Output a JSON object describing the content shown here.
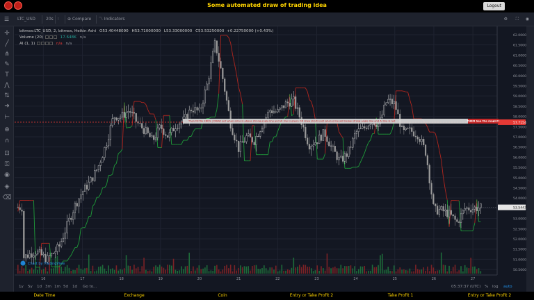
{
  "header": {
    "title": "Some automated draw of trading idea",
    "logout_label": "Logout"
  },
  "toolbar": {
    "symbol": "LTC_USD",
    "interval": "20s",
    "compare_label": "Compare",
    "indicators_label": "Indicators"
  },
  "legend": {
    "title": "bitmex:LTC_USD, 2, bitmex, Heikin Ashi",
    "open": "O53.40448090",
    "high": "H53.71000000",
    "low": "L53.33000000",
    "close": "C53.53250000",
    "change": "+0.22750000 (+0.43%)",
    "volume_label": "Volume (20)",
    "volume_value": "17.648K",
    "volume_na": "n/a",
    "ai_label": "AI (1, 1)",
    "ai_na1": "n/a",
    "ai_na2": "n/a"
  },
  "price_axis": {
    "ticks": [
      "62.00000000",
      "61.50000000",
      "61.00000000",
      "60.50000000",
      "60.00000000",
      "59.50000000",
      "59.00000000",
      "58.50000000",
      "58.00000000",
      "57.50000000",
      "57.00000000",
      "56.50000000",
      "56.00000000",
      "55.50000000",
      "55.00000000",
      "54.50000000",
      "54.00000000",
      "53.50000000",
      "53.00000000",
      "52.50000000",
      "52.00000000",
      "51.50000000",
      "51.00000000",
      "50.50000000"
    ],
    "last_price": "53.54433841",
    "line_price": "57.71541466"
  },
  "time_axis": {
    "ticks": [
      "16",
      "17",
      "18",
      "19",
      "20",
      "21",
      "22",
      "23",
      "24",
      "25",
      "26",
      "27"
    ]
  },
  "annotation": {
    "text": "Then till flip ENDS  |  DRAW just when   price is above strong angle line and AI line is green       OR       draw shorts just when price will below strong angle line and AI line is red",
    "badge": "THEN See the magic!!"
  },
  "watermark": "Chart by TradingView",
  "bottom_toolbar": {
    "ranges": [
      "1y",
      "5y",
      "1d",
      "3m",
      "1m",
      "5d",
      "1d"
    ],
    "goto_label": "Go to...",
    "time": "05:37:37 (UTC)",
    "pct_label": "%",
    "log_label": "log",
    "auto_label": "auto"
  },
  "footer": {
    "columns": [
      "Date Time",
      "Exchange",
      "Coin",
      "Entry or Take Profit 2",
      "Take Profit 1",
      "Entry or Take Profit 2"
    ]
  },
  "colors": {
    "up": "#d9d9d9",
    "down": "#9a9a9a",
    "ai_green": "#1f9d3a",
    "ai_red": "#b3261e",
    "volume_up": "#1e6b3a",
    "volume_down": "#7a2226",
    "accent_yellow": "#ffd400"
  },
  "chart_data": {
    "type": "candlestick",
    "style": "Heikin Ashi",
    "ylim": [
      50.3,
      62.1
    ],
    "x": [
      "16",
      "17",
      "18",
      "19",
      "20",
      "21",
      "22",
      "23",
      "24",
      "25",
      "26",
      "27"
    ],
    "close_path": [
      [
        15.5,
        51.1
      ],
      [
        15.8,
        51.4
      ],
      [
        16.1,
        51.0
      ],
      [
        16.4,
        51.6
      ],
      [
        16.6,
        52.6
      ],
      [
        16.8,
        53.6
      ],
      [
        17.0,
        54.3
      ],
      [
        17.2,
        54.8
      ],
      [
        17.4,
        55.5
      ],
      [
        17.6,
        56.6
      ],
      [
        17.8,
        58.0
      ],
      [
        18.0,
        58.0
      ],
      [
        18.2,
        58.3
      ],
      [
        18.4,
        57.7
      ],
      [
        18.6,
        57.3
      ],
      [
        18.8,
        56.8
      ],
      [
        19.0,
        57.5
      ],
      [
        19.2,
        57.0
      ],
      [
        19.4,
        57.6
      ],
      [
        19.6,
        57.8
      ],
      [
        19.8,
        58.4
      ],
      [
        20.0,
        58.2
      ],
      [
        20.2,
        59.6
      ],
      [
        20.4,
        61.6
      ],
      [
        20.6,
        59.8
      ],
      [
        20.8,
        57.6
      ],
      [
        21.0,
        56.4
      ],
      [
        21.2,
        57.0
      ],
      [
        21.4,
        56.8
      ],
      [
        21.6,
        57.6
      ],
      [
        21.8,
        58.3
      ],
      [
        22.0,
        58.2
      ],
      [
        22.2,
        58.6
      ],
      [
        22.4,
        58.8
      ],
      [
        22.6,
        57.8
      ],
      [
        22.8,
        56.6
      ],
      [
        23.0,
        56.8
      ],
      [
        23.2,
        57.2
      ],
      [
        23.4,
        56.4
      ],
      [
        23.6,
        55.8
      ],
      [
        23.8,
        56.2
      ],
      [
        24.0,
        57.2
      ],
      [
        24.2,
        57.4
      ],
      [
        24.4,
        57.8
      ],
      [
        24.6,
        57.6
      ],
      [
        24.8,
        58.8
      ],
      [
        25.0,
        58.6
      ],
      [
        25.2,
        57.2
      ],
      [
        25.4,
        57.3
      ],
      [
        25.6,
        57.1
      ],
      [
        25.8,
        56.2
      ],
      [
        26.0,
        53.4
      ],
      [
        26.2,
        53.4
      ],
      [
        26.4,
        53.2
      ],
      [
        26.6,
        52.8
      ],
      [
        26.8,
        53.5
      ],
      [
        27.0,
        53.5
      ],
      [
        27.2,
        53.54
      ]
    ]
  }
}
